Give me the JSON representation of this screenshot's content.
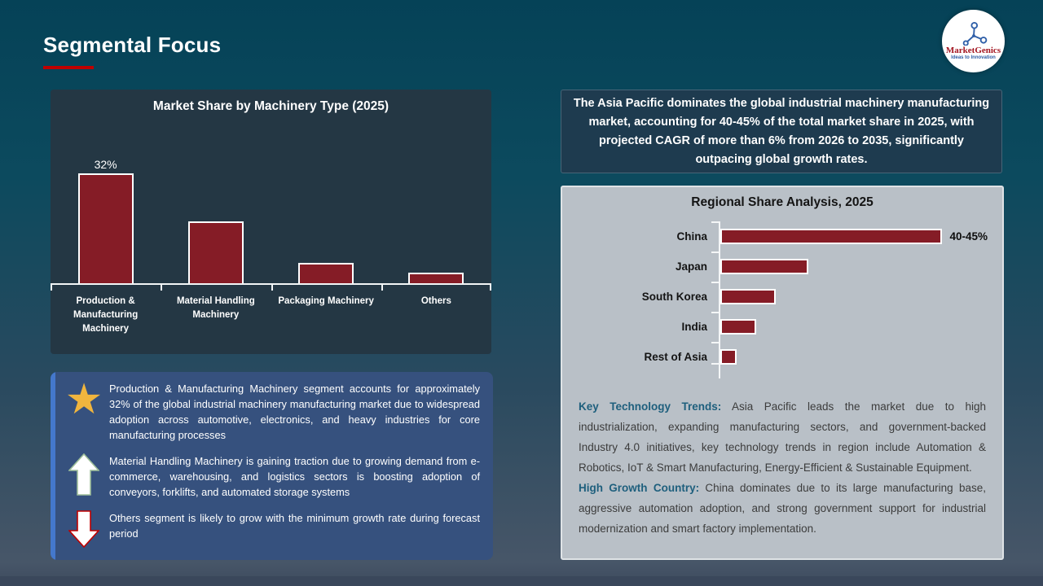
{
  "slide": {
    "title": "Segmental Focus"
  },
  "logo": {
    "brand": "MarketGenics",
    "tagline": "Ideas to Innovation"
  },
  "colors": {
    "accent_red": "#c00000",
    "bar_maroon": "#851c26",
    "insight_blue": "#36517e",
    "insight_accent": "#4478cc",
    "teal_lead": "#1e5f7d",
    "gold_star": "#f0b53e",
    "panel_navy": "#243744",
    "gray_box": "#b9c0c7"
  },
  "chart_data": [
    {
      "type": "bar",
      "orientation": "vertical",
      "title": "Market Share by Machinery Type (2025)",
      "categories": [
        "Production & Manufacturing Machinery",
        "Material Handling Machinery",
        "Packaging Machinery",
        "Others"
      ],
      "values": [
        32,
        18,
        6,
        3
      ],
      "data_labels": [
        "32%",
        "",
        "",
        ""
      ],
      "unit": "%",
      "ylim": [
        0,
        45
      ],
      "grid": false,
      "legend": false
    },
    {
      "type": "bar",
      "orientation": "horizontal",
      "title": "Regional Share Analysis, 2025",
      "categories": [
        "China",
        "Japan",
        "South Korea",
        "India",
        "Rest of Asia"
      ],
      "values": [
        42.5,
        16,
        10,
        6.5,
        3
      ],
      "data_labels": [
        "40-45%",
        "",
        "",
        "",
        ""
      ],
      "unit": "%",
      "xlim": [
        0,
        45
      ],
      "grid": false,
      "legend": false
    }
  ],
  "highlight_box": {
    "text": "The Asia Pacific dominates the global industrial machinery manufacturing market, accounting for 40-45% of the total market share in 2025, with projected CAGR of more than 6% from 2026 to 2035, significantly outpacing global growth rates."
  },
  "bullets": [
    {
      "icon": "star-icon",
      "text": "Production & Manufacturing Machinery segment accounts for approximately 32% of the global industrial machinery manufacturing market due to widespread adoption across automotive, electronics, and heavy industries for core manufacturing processes"
    },
    {
      "icon": "up-arrow-icon",
      "text": "Material Handling Machinery is gaining traction due to growing demand from e-commerce, warehousing, and logistics sectors is boosting adoption of conveyors, forklifts, and automated storage systems"
    },
    {
      "icon": "down-arrow-icon",
      "text": "Others segment is likely to grow with the minimum growth rate during forecast period"
    }
  ],
  "insights": [
    {
      "lead": "Key Technology Trends:",
      "text": " Asia Pacific leads the market due to high industrialization, expanding manufacturing sectors, and government-backed Industry 4.0 initiatives, key technology trends in region include Automation & Robotics, IoT & Smart Manufacturing, Energy-Efficient & Sustainable Equipment."
    },
    {
      "lead": "High Growth Country:",
      "text": " China dominates due to its large manufacturing base, aggressive automation adoption, and strong government support for industrial modernization and smart factory implementation."
    }
  ]
}
